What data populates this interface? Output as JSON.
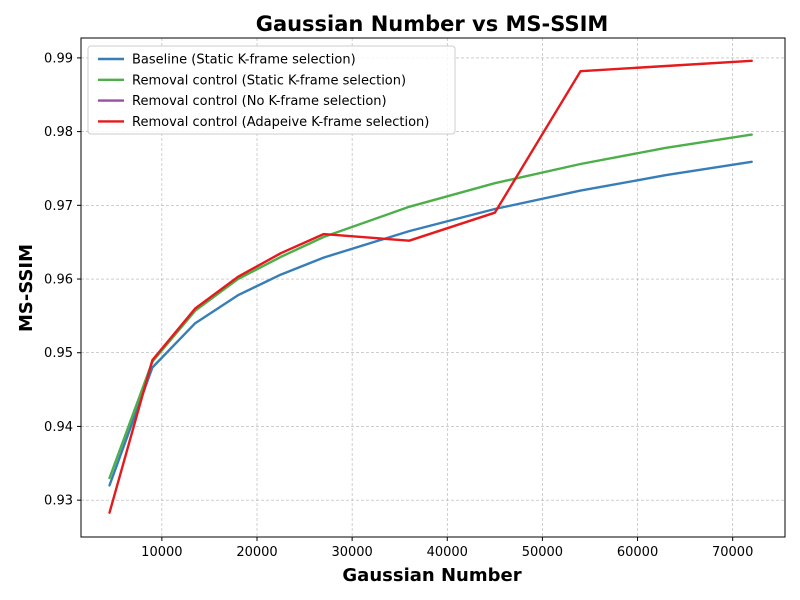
{
  "chart_data": {
    "type": "line",
    "title": "Gaussian Number vs MS-SSIM",
    "xlabel": "Gaussian Number",
    "ylabel": "MS-SSIM",
    "xlim": [
      1500,
      75500
    ],
    "ylim": [
      0.925,
      0.9927
    ],
    "xticks": [
      10000,
      20000,
      30000,
      40000,
      50000,
      60000,
      70000
    ],
    "yticks": [
      0.93,
      0.94,
      0.95,
      0.96,
      0.97,
      0.98,
      0.99
    ],
    "grid": true,
    "legend_position": "upper-left",
    "series": [
      {
        "name": "Baseline (Static K-frame selection)",
        "color": "#377eb8",
        "x": [
          4500,
          9000,
          13500,
          18000,
          22500,
          27000,
          36000,
          45000,
          54000,
          63000,
          72000
        ],
        "y": [
          0.932,
          0.948,
          0.954,
          0.9578,
          0.9606,
          0.9629,
          0.9665,
          0.9695,
          0.972,
          0.9741,
          0.9759
        ]
      },
      {
        "name": "Removal control (Static K-frame selection)",
        "color": "#4daf4a",
        "x": [
          4500,
          9000,
          13500,
          18000,
          22500,
          27000,
          36000,
          45000,
          54000,
          63000,
          72000
        ],
        "y": [
          0.933,
          0.9488,
          0.9557,
          0.96,
          0.963,
          0.9657,
          0.9698,
          0.973,
          0.9756,
          0.9778,
          0.9796
        ]
      },
      {
        "name": "Removal control (No K-frame selection)",
        "color": "#984ea3",
        "x": [],
        "y": []
      },
      {
        "name": "Removal control (Adapeive K-frame selection)",
        "color": "#e41a1c",
        "x": [
          4500,
          9000,
          13500,
          18000,
          22500,
          27000,
          36000,
          45000,
          54000,
          63000,
          72000
        ],
        "y": [
          0.9283,
          0.949,
          0.956,
          0.9603,
          0.9635,
          0.9661,
          0.9652,
          0.969,
          0.9882,
          0.9889,
          0.9896
        ]
      }
    ]
  }
}
